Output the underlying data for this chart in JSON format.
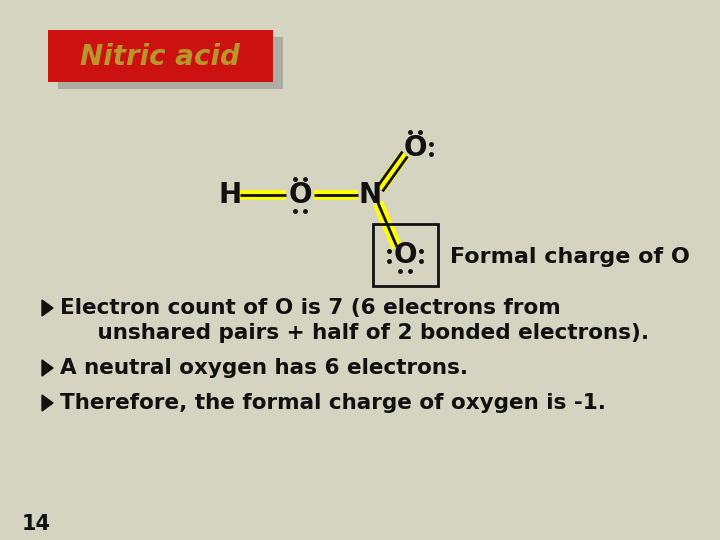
{
  "bg_color": "#d4d4c0",
  "title": "Nitric acid",
  "title_bg": "#cc1111",
  "title_shadow_color": "#888888",
  "title_text_color": "#b8962a",
  "title_font_size": 20,
  "bullet_points": [
    "Electron count of O is 7 (6 electrons from",
    "     unshared pairs + half of 2 bonded electrons).",
    "A neutral oxygen has 6 electrons.",
    "Therefore, the formal charge of oxygen is -1."
  ],
  "bullet_color": "#111111",
  "bullet_font_size": 15.5,
  "page_number": "14",
  "molecule_color": "#111111",
  "highlight_color": "#ffff00",
  "box_color": "#111111",
  "formal_charge_label": "Formal charge of O"
}
